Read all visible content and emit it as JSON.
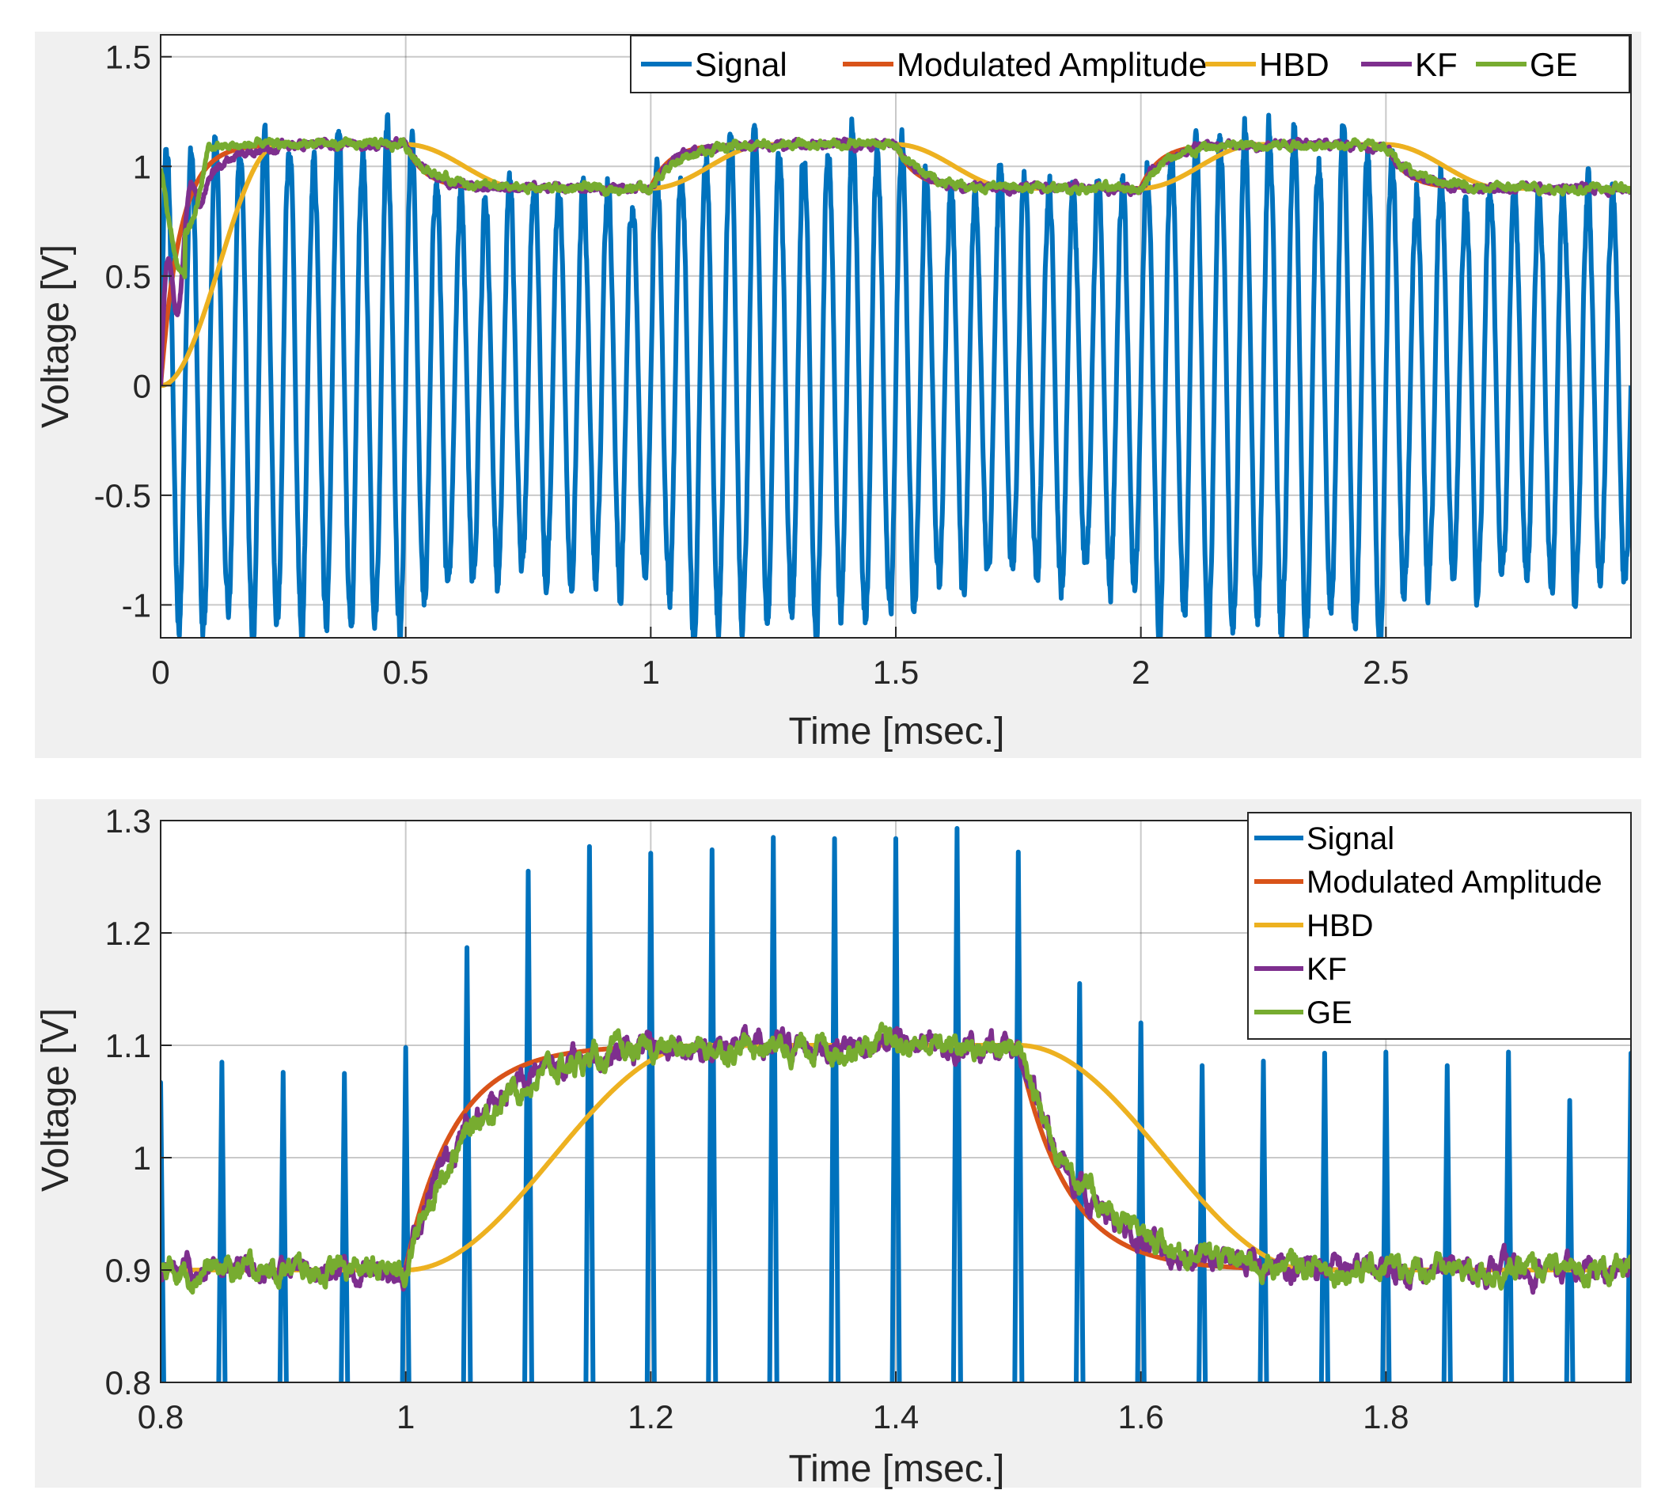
{
  "colors": {
    "signal": "#0072BD",
    "modulated": "#D95319",
    "hbd": "#EDB120",
    "kf": "#7E2F8E",
    "ge": "#77AC30",
    "panel_bg": "#F0F0F0",
    "axes_bg": "#FFFFFF",
    "grid": "#262626"
  },
  "chart_data": [
    {
      "type": "line",
      "xlabel": "Time [msec.]",
      "ylabel": "Voltage [V]",
      "xlim": [
        0,
        3.0
      ],
      "ylim": [
        -1.15,
        1.6
      ],
      "xticks": [
        0,
        0.5,
        1,
        1.5,
        2,
        2.5
      ],
      "xtick_labels": [
        "0",
        "0.5",
        "1",
        "1.5",
        "2",
        "2.5"
      ],
      "yticks": [
        -1,
        -0.5,
        0,
        0.5,
        1,
        1.5
      ],
      "ytick_labels": [
        "-1",
        "-0.5",
        "0",
        "0.5",
        "1",
        "1.5"
      ],
      "grid": true,
      "legend": {
        "position": "top-right",
        "orientation": "horizontal",
        "entries": [
          "Signal",
          "Modulated Amplitude",
          "HBD",
          "KF",
          "GE"
        ]
      },
      "series": [
        {
          "name": "Signal",
          "kind": "carrier",
          "frequency_khz": 20,
          "amplitude_low": 0.9,
          "amplitude_high": 1.1,
          "high_intervals": [
            [
              0,
              0.5
            ],
            [
              1,
              1.5
            ],
            [
              2,
              2.5
            ]
          ],
          "noise_v": 0.2
        },
        {
          "name": "Modulated Amplitude",
          "kind": "envelope",
          "low": 0.9,
          "high": 1.1,
          "high_intervals": [
            [
              0,
              0.5
            ],
            [
              1,
              1.5
            ],
            [
              2,
              2.5
            ]
          ],
          "tau_ms": 0.04,
          "initial": 0.0
        },
        {
          "name": "HBD",
          "kind": "envelope",
          "low": 0.9,
          "high": 1.1,
          "high_intervals": [
            [
              0,
              0.5
            ],
            [
              1,
              1.5
            ],
            [
              2,
              2.5
            ]
          ],
          "delay_ms": 0.12,
          "initial": 0.0
        },
        {
          "name": "KF",
          "kind": "envelope",
          "low": 0.9,
          "high": 1.1,
          "high_intervals": [
            [
              0,
              0.5
            ],
            [
              1,
              1.5
            ],
            [
              2,
              2.5
            ]
          ],
          "tau_ms": 0.05,
          "initial": 0.0
        },
        {
          "name": "GE",
          "kind": "envelope",
          "low": 0.9,
          "high": 1.1,
          "high_intervals": [
            [
              0,
              0.5
            ],
            [
              1,
              1.5
            ],
            [
              2,
              2.5
            ]
          ],
          "tau_ms": 0.055,
          "initial": 1.0
        }
      ]
    },
    {
      "type": "line",
      "xlabel": "Time [msec.]",
      "ylabel": "Voltage [V]",
      "xlim": [
        0.8,
        2.0
      ],
      "ylim": [
        0.8,
        1.3
      ],
      "xticks": [
        0.8,
        1.0,
        1.2,
        1.4,
        1.6,
        1.8
      ],
      "xtick_labels": [
        "0.8",
        "1",
        "1.2",
        "1.4",
        "1.6",
        "1.8"
      ],
      "yticks": [
        0.8,
        0.9,
        1.0,
        1.1,
        1.2,
        1.3
      ],
      "ytick_labels": [
        "0.8",
        "0.9",
        "1",
        "1.1",
        "1.2",
        "1.3"
      ],
      "grid": true,
      "legend": {
        "position": "top-right",
        "orientation": "vertical",
        "entries": [
          "Signal",
          "Modulated Amplitude",
          "HBD",
          "KF",
          "GE"
        ]
      },
      "signal_peaks": {
        "x": [
          0.8,
          0.85,
          0.9,
          0.95,
          1.0,
          1.05,
          1.1,
          1.15,
          1.2,
          1.25,
          1.3,
          1.35,
          1.4,
          1.45,
          1.5,
          1.55,
          1.6,
          1.65,
          1.7,
          1.75,
          1.8,
          1.85,
          1.9,
          1.95,
          2.0
        ],
        "y": [
          1.067,
          1.085,
          1.076,
          1.075,
          1.098,
          1.187,
          1.255,
          1.277,
          1.271,
          1.274,
          1.285,
          1.284,
          1.284,
          1.293,
          1.272,
          1.155,
          1.12,
          1.082,
          1.086,
          1.093,
          1.094,
          1.082,
          1.094,
          1.051,
          1.093
        ]
      },
      "series": [
        {
          "name": "Signal",
          "kind": "carrier_peaks"
        },
        {
          "name": "Modulated Amplitude",
          "kind": "envelope",
          "low": 0.9,
          "high": 1.1,
          "high_intervals": [
            [
              1.0,
              1.5
            ]
          ],
          "tau_ms": 0.04
        },
        {
          "name": "HBD",
          "kind": "envelope",
          "low": 0.9,
          "high": 1.1,
          "high_intervals": [
            [
              1.0,
              1.5
            ]
          ],
          "delay_ms": 0.12
        },
        {
          "name": "KF",
          "kind": "envelope",
          "low": 0.9,
          "high": 1.1,
          "high_intervals": [
            [
              1.0,
              1.5
            ]
          ],
          "tau_ms": 0.05
        },
        {
          "name": "GE",
          "kind": "envelope",
          "low": 0.9,
          "high": 1.1,
          "high_intervals": [
            [
              1.0,
              1.5
            ]
          ],
          "tau_ms": 0.055
        }
      ]
    }
  ]
}
